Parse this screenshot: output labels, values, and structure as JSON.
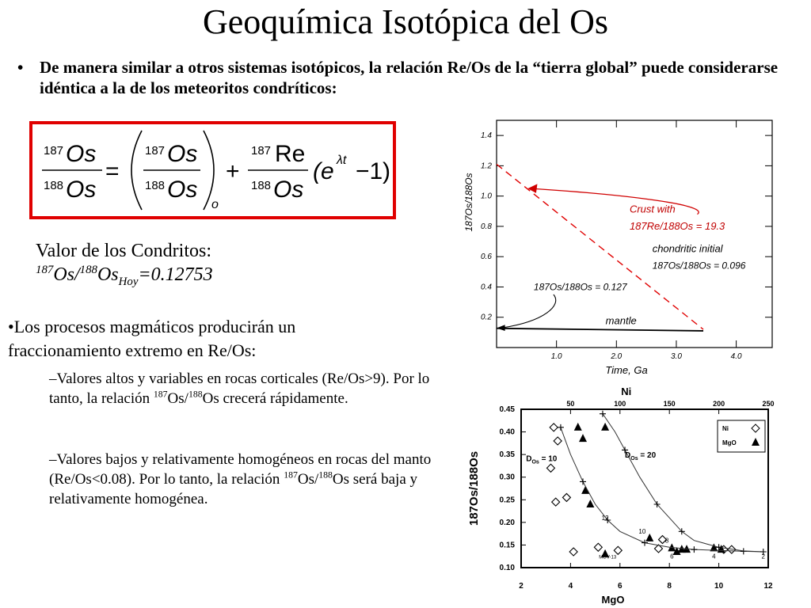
{
  "title": "Geoquímica Isotópica del Os",
  "bullet1": {
    "marker": "•",
    "text": "De manera similar a otros sistemas isotópicos, la relación Re/Os de la “tierra global” puede considerarse idéntica a la de los meteoritos condríticos:"
  },
  "equation": {
    "num_mass": "187",
    "den_mass": "188",
    "element_os": "Os",
    "re_mass": "187",
    "element_re": "Re",
    "initial_sub": "o",
    "equals": "=",
    "plus": "+",
    "minus": "−1",
    "exp_base": "(e",
    "exp_power": "λt",
    "close": ")"
  },
  "condritos": {
    "line1": "Valor de los Condritos:",
    "os1_mass": "187",
    "os1": "Os/",
    "os2_mass": "188",
    "os2": "Os",
    "sub": "Hoy",
    "value": "=0.12753"
  },
  "procesos": {
    "text": "•Los procesos magmáticos producirán un fraccionamiento extremo en Re/Os:"
  },
  "sub1": {
    "a": "–Valores altos y variables en rocas corticales (Re/Os>9). Por lo tanto, la relación ",
    "m1": "187",
    "b": "Os/",
    "m2": "188",
    "c": "Os crecerá rápidamente."
  },
  "sub2": {
    "a": "–Valores bajos y relativamente homogéneos en rocas del manto (Re/Os<0.08). Por lo tanto, la relación ",
    "m1": "187",
    "b": "Os/",
    "m2": "188",
    "c": "Os será baja y relativamente homogénea."
  },
  "chart_data": [
    {
      "type": "line",
      "xlabel": "Time, Ga",
      "ylabel": "187Os/188Os",
      "xlim": [
        0,
        4.6
      ],
      "ylim": [
        0.0,
        1.5
      ],
      "x_ticks": [
        "1.0",
        "2.0",
        "3.0",
        "4.0"
      ],
      "y_ticks": [
        "0.2",
        "0.4",
        "0.6",
        "0.8",
        "1.0",
        "1.2",
        "1.4"
      ],
      "series": [
        {
          "name": "chondritic",
          "style": "dashed",
          "color": "#e00000",
          "x": [
            0.0,
            3.45
          ],
          "y": [
            1.21,
            0.12
          ]
        },
        {
          "name": "mantle",
          "style": "solid",
          "color": "#000000",
          "x": [
            0.0,
            3.45
          ],
          "y": [
            0.127,
            0.11
          ]
        }
      ],
      "annotations": {
        "crust_line1": "Crust with",
        "crust_line2": "187Re/188Os = 19.3",
        "chond_line1": "chondritic initial",
        "chond_line2": "187Os/188Os = 0.096",
        "mantle_value": "187Os/188Os = 0.127",
        "mantle": "mantle"
      }
    },
    {
      "type": "scatter",
      "xlabel": "MgO",
      "x2label": "Ni",
      "ylabel": "187Os/188Os",
      "xlim": [
        2,
        12
      ],
      "x2lim": [
        0,
        250
      ],
      "ylim": [
        0.1,
        0.45
      ],
      "x_ticks": [
        "2",
        "4",
        "6",
        "8",
        "10",
        "12"
      ],
      "x2_ticks": [
        "50",
        "100",
        "150",
        "200",
        "250"
      ],
      "y_ticks": [
        "0.10",
        "0.15",
        "0.20",
        "0.25",
        "0.30",
        "0.35",
        "0.40",
        "0.45"
      ],
      "legend": [
        {
          "label": "Ni",
          "marker": "diamond"
        },
        {
          "label": "MgO",
          "marker": "triangle"
        }
      ],
      "legend_position": "top-right",
      "curve_labels": {
        "d10_main": "D",
        "d10_sub": "Os",
        "d10_rest": " = 10",
        "d20_main": "D",
        "d20_sub": "Os",
        "d20_rest": " = 20"
      },
      "series": [
        {
          "name": "Ni",
          "marker": "diamond",
          "x2": [
            33,
            37,
            30,
            35,
            46,
            53,
            78,
            98,
            139,
            143,
            205,
            213
          ],
          "y": [
            0.41,
            0.38,
            0.32,
            0.245,
            0.255,
            0.135,
            0.145,
            0.138,
            0.142,
            0.162,
            0.14,
            0.14
          ]
        },
        {
          "name": "MgO",
          "marker": "triangle",
          "x": [
            4.3,
            4.5,
            4.6,
            4.8,
            5.4,
            5.4,
            7.2,
            8.1,
            8.3,
            8.5,
            8.7,
            9.8,
            10.1
          ],
          "y": [
            0.41,
            0.385,
            0.27,
            0.24,
            0.41,
            0.13,
            0.165,
            0.143,
            0.135,
            0.14,
            0.14,
            0.143,
            0.14
          ]
        },
        {
          "name": "D=10",
          "style": "curve",
          "x": [
            3.6,
            4.0,
            4.5,
            5.0,
            5.5,
            6.0,
            7.0,
            8.0,
            9.0,
            10.0,
            11.0,
            11.8
          ],
          "y": [
            0.41,
            0.35,
            0.29,
            0.24,
            0.205,
            0.18,
            0.155,
            0.145,
            0.14,
            0.138,
            0.136,
            0.135
          ]
        },
        {
          "name": "D=20",
          "style": "curve",
          "x": [
            5.3,
            5.8,
            6.2,
            6.8,
            7.5,
            8.0,
            8.5,
            9.0,
            10.0,
            11.0,
            11.8
          ],
          "y": [
            0.44,
            0.4,
            0.36,
            0.3,
            0.24,
            0.21,
            0.18,
            0.16,
            0.145,
            0.137,
            0.135
          ]
        }
      ],
      "point_labels": [
        "12",
        "10",
        "8",
        "6",
        "4",
        "2",
        "MGV-13"
      ]
    }
  ]
}
